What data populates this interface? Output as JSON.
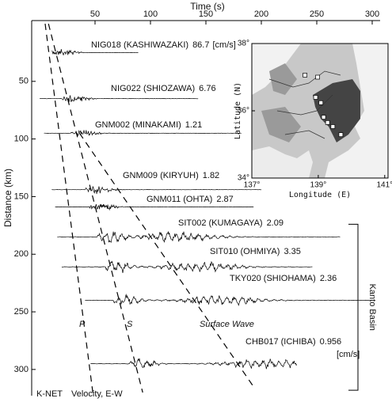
{
  "chart_data": [
    {
      "type": "record-section",
      "x_label": "Time (s)",
      "y_label": "Distance (km)",
      "xlim": [
        0,
        300
      ],
      "xticks": [
        50,
        100,
        150,
        200,
        250,
        300
      ],
      "ylim": [
        0,
        320
      ],
      "yticks": [
        50,
        100,
        150,
        200,
        250,
        300
      ],
      "traces": [
        {
          "station": "NIG018 (KASHIWAZAKI)",
          "amplitude": 86.7,
          "unit": "[cm/s]",
          "distance": 25,
          "start": 11,
          "end": 89
        },
        {
          "station": "NIG022 (SHIOZAWA)",
          "amplitude": 6.76,
          "distance": 65,
          "start": 0,
          "end": 143
        },
        {
          "station": "GNM002 (MINAKAMI)",
          "amplitude": 1.21,
          "distance": 95,
          "start": 4,
          "end": 182
        },
        {
          "station": "GNM009 (KIRYUH)",
          "amplitude": 1.82,
          "distance": 144,
          "start": 11,
          "end": 200
        },
        {
          "station": "GNM011 (OHTA)",
          "amplitude": 2.87,
          "distance": 159,
          "start": 14,
          "end": 193
        },
        {
          "station": "SIT002 (KUMAGAYA)",
          "amplitude": 2.09,
          "distance": 185,
          "start": 16,
          "end": 271
        },
        {
          "station": "SIT010 (OHMIYA)",
          "amplitude": 3.35,
          "distance": 211,
          "start": 20,
          "end": 246
        },
        {
          "station": "TKY020 (SHIOHAMA)",
          "amplitude": 2.36,
          "distance": 240,
          "start": 41,
          "end": 300
        },
        {
          "station": "CHB017 (ICHIBA)",
          "amplitude": 0.956,
          "unit": "[cm/s]",
          "distance": 295,
          "start": 46,
          "end": 232
        }
      ],
      "phases": [
        {
          "label": "P",
          "t": [
            5,
            48
          ],
          "d": [
            0,
            320
          ]
        },
        {
          "label": "S",
          "t": [
            8,
            93
          ],
          "d": [
            0,
            320
          ]
        },
        {
          "label": "Surface Wave",
          "t": [
            36,
            193
          ],
          "d": [
            95,
            315
          ]
        }
      ],
      "region": {
        "label": "Kanto Basin",
        "d": [
          174,
          318
        ]
      },
      "source": "K-NET",
      "component": "Velocity, E-W"
    },
    {
      "type": "map",
      "x_label": "Longitude (E)",
      "y_label": "Latitude (N)",
      "xlim": [
        137,
        141.1
      ],
      "ylim": [
        34,
        38
      ],
      "xticks": [
        {
          "value": 137,
          "label": "137°"
        },
        {
          "value": 139,
          "label": "139°"
        },
        {
          "value": 141,
          "label": "141°"
        }
      ],
      "yticks": [
        {
          "value": 34,
          "label": "34°"
        },
        {
          "value": 36,
          "label": "36°"
        },
        {
          "value": 38,
          "label": "38°"
        }
      ],
      "stations": {
        "lon": [
          138.6,
          138.92,
          139.08,
          139.16,
          139.28,
          139.44,
          139.68,
          138.98
        ],
        "lat": [
          37.06,
          36.4,
          36.24,
          35.81,
          35.65,
          35.53,
          35.29,
          37.0
        ]
      }
    }
  ]
}
